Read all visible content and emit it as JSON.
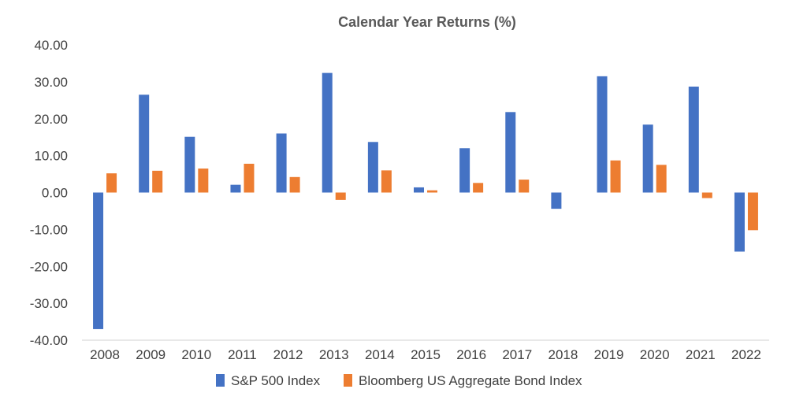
{
  "chart_data": {
    "type": "bar",
    "title": "Calendar Year Returns (%)",
    "xlabel": "",
    "ylabel": "",
    "ylim": [
      -40,
      40
    ],
    "yticks": [
      40,
      30,
      20,
      10,
      0,
      -10,
      -20,
      -30,
      -40
    ],
    "ytick_labels": [
      "40.00",
      "30.00",
      "20.00",
      "10.00",
      "0.00",
      "-10.00",
      "-20.00",
      "-30.00",
      "-40.00"
    ],
    "categories": [
      "2008",
      "2009",
      "2010",
      "2011",
      "2012",
      "2013",
      "2014",
      "2015",
      "2016",
      "2017",
      "2018",
      "2019",
      "2020",
      "2021",
      "2022"
    ],
    "series": [
      {
        "name": "S&P 500 Index",
        "color": "#4472C4",
        "values": [
          -37.0,
          26.5,
          15.1,
          2.1,
          16.0,
          32.4,
          13.7,
          1.4,
          12.0,
          21.8,
          -4.4,
          31.5,
          18.4,
          28.7,
          -16.0
        ]
      },
      {
        "name": "Bloomberg US Aggregate Bond Index",
        "color": "#ED7D31",
        "values": [
          5.2,
          5.9,
          6.5,
          7.8,
          4.2,
          -2.0,
          6.0,
          0.6,
          2.6,
          3.5,
          0.0,
          8.7,
          7.5,
          -1.5,
          -10.2
        ]
      }
    ],
    "grid": false,
    "legend_position": "bottom"
  }
}
